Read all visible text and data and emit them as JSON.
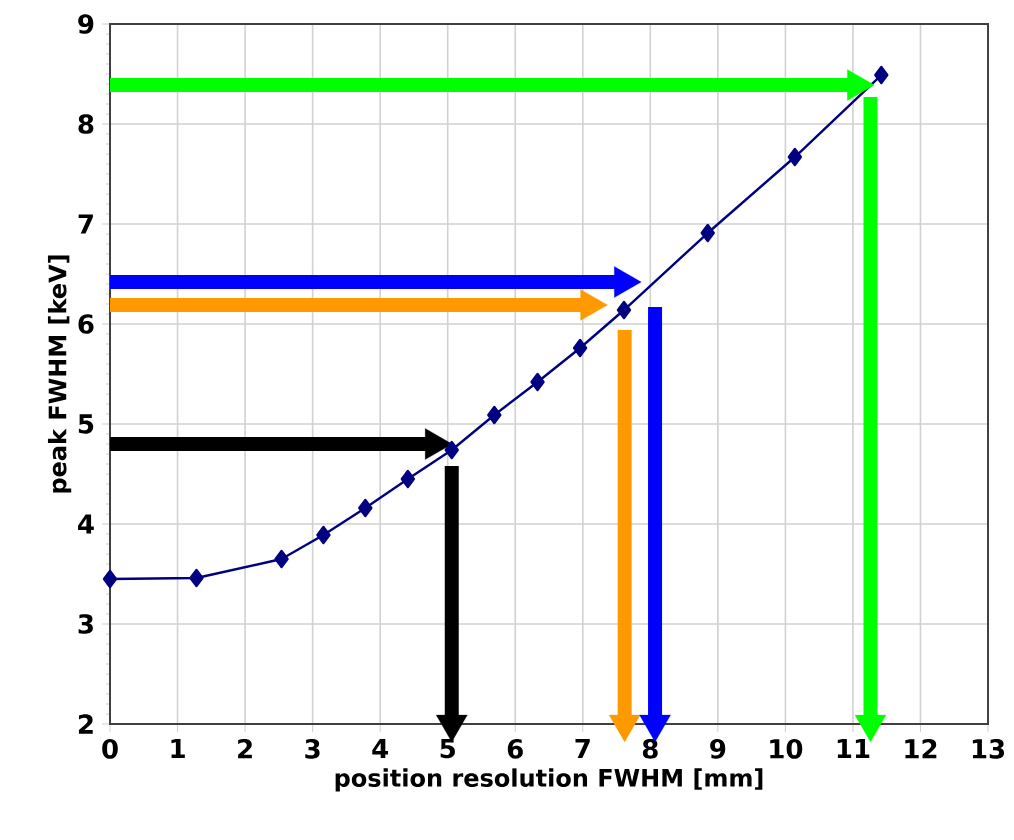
{
  "chart_data": {
    "type": "line",
    "xlabel": "position resolution FWHM [mm]",
    "ylabel": "peak FWHM [keV]",
    "xlim": [
      0,
      13
    ],
    "xticks": [
      0,
      1,
      2,
      3,
      4,
      5,
      6,
      7,
      8,
      9,
      10,
      11,
      12,
      13
    ],
    "ylim": [
      2,
      9
    ],
    "yticks": [
      2,
      3,
      4,
      5,
      6,
      7,
      8,
      9
    ],
    "grid": true,
    "marker": "diamond",
    "series": [
      {
        "color": "#000080",
        "x": [
          0,
          1.28,
          2.54,
          3.16,
          3.78,
          4.41,
          5.06,
          5.69,
          6.33,
          6.96,
          7.61,
          8.85,
          10.14,
          11.42
        ],
        "values": [
          3.45,
          3.46,
          3.65,
          3.89,
          4.16,
          4.45,
          4.74,
          5.09,
          5.42,
          5.76,
          6.14,
          6.91,
          7.67,
          8.49
        ]
      },
      {
        "color": "#000000",
        "marker": "triangle",
        "x": [
          0,
          4.8
        ],
        "values": [
          4.8,
          4.8
        ]
      },
      {
        "color": "#000000",
        "marker": "triangle",
        "x": [
          5.06,
          5.06
        ],
        "values": [
          4.58,
          2
        ]
      },
      {
        "color": "#ff9900",
        "marker": "triangle",
        "x": [
          0,
          7.1
        ],
        "values": [
          6.19,
          6.19
        ]
      },
      {
        "color": "#ff9900",
        "marker": "triangle",
        "x": [
          7.62,
          7.62
        ],
        "values": [
          5.94,
          2
        ]
      },
      {
        "color": "#0000ff",
        "marker": "triangle",
        "x": [
          0,
          7.6
        ],
        "values": [
          6.42,
          6.42
        ]
      },
      {
        "color": "#0000ff",
        "marker": "triangle",
        "x": [
          8.07,
          8.07
        ],
        "values": [
          6.17,
          2
        ]
      },
      {
        "color": "#00ff00",
        "marker": "triangle",
        "x": [
          0,
          11.05
        ],
        "values": [
          8.39,
          8.39
        ]
      },
      {
        "color": "#00ff00",
        "marker": "triangle",
        "x": [
          11.26,
          11.26
        ],
        "values": [
          8.27,
          2
        ]
      }
    ]
  }
}
